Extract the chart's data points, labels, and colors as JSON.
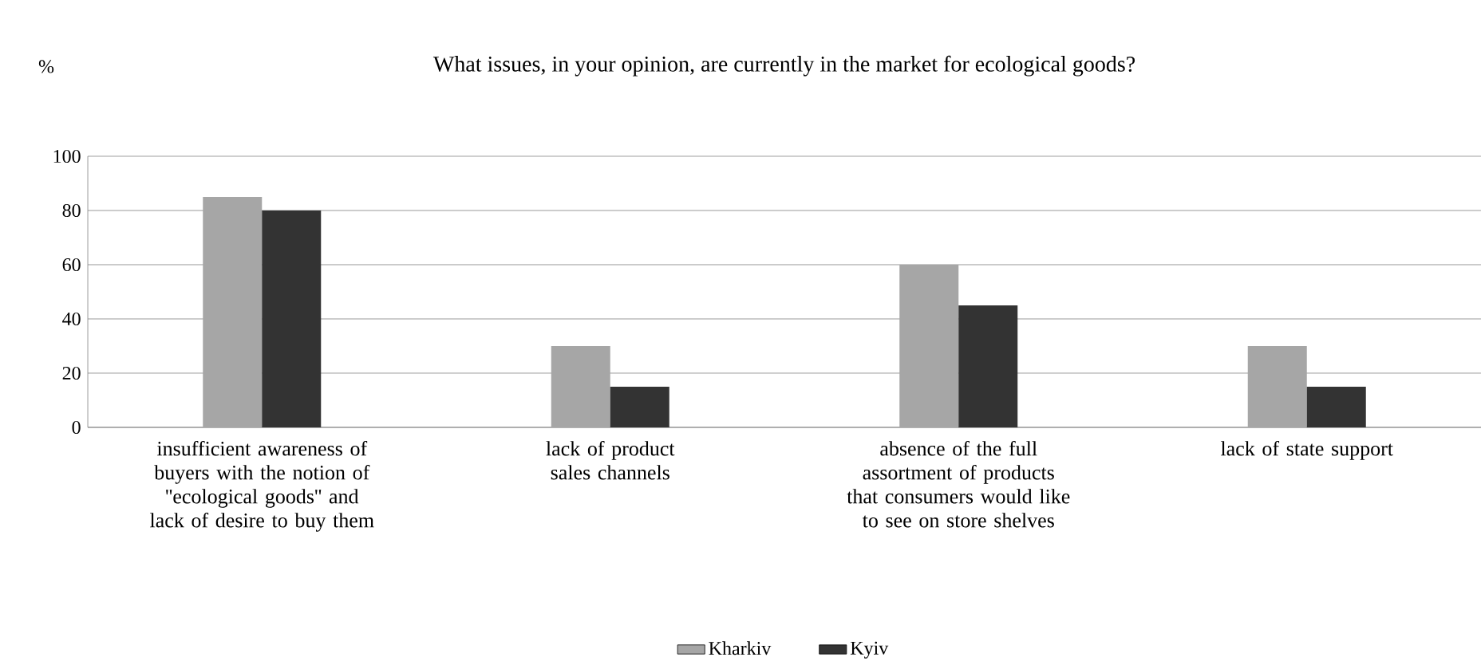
{
  "chart_data": {
    "type": "bar",
    "title": "What issues, in your opinion, are currently in the market for ecological goods?",
    "ylabel": "%",
    "categories": [
      "insufficient awareness of buyers with the notion of ''ecological goods'' and lack of desire to buy them",
      "lack of product sales channels",
      "absence of the full assortment of products that consumers would like to see on store shelves",
      "lack of state support"
    ],
    "series": [
      {
        "name": "Kharkiv",
        "color": "#a6a6a6",
        "values": [
          85,
          30,
          60,
          30
        ]
      },
      {
        "name": "Kyiv",
        "color": "#333333",
        "values": [
          80,
          15,
          45,
          15
        ]
      }
    ],
    "ylim": [
      0,
      100
    ],
    "yticks": [
      0,
      20,
      40,
      60,
      80,
      100
    ],
    "grid": "y",
    "legend": "bottom"
  }
}
